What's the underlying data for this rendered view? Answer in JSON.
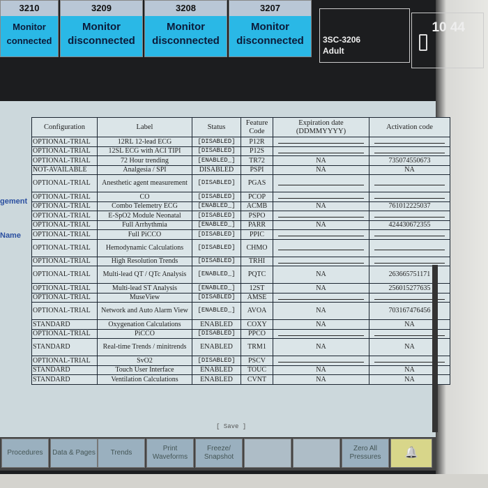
{
  "tiles": [
    {
      "num": "3210",
      "line1": "Monitor",
      "line2": "connected"
    },
    {
      "num": "3209",
      "line1": "Monitor",
      "line2": "disconnected"
    },
    {
      "num": "3208",
      "line1": "Monitor",
      "line2": "disconnected"
    },
    {
      "num": "3207",
      "line1": "Monitor",
      "line2": "disconnected"
    }
  ],
  "bed": {
    "name": "3SC-3206",
    "category": "Adult"
  },
  "clock": "10 44",
  "side_labels": [
    "gement",
    "Name"
  ],
  "table": {
    "headers": [
      "Configuration",
      "Label",
      "Status",
      "Feature Code",
      "Expiration date (DDMMYYYY)",
      "Activation code"
    ],
    "rows": [
      [
        "OPTIONAL-TRIAL",
        "12RL 12-lead ECG",
        "[DISABLED]",
        "P12R",
        "",
        ""
      ],
      [
        "OPTIONAL-TRIAL",
        "12SL ECG with ACI TIPI",
        "[DISABLED]",
        "P12S",
        "",
        ""
      ],
      [
        "OPTIONAL-TRIAL",
        "72 Hour trending",
        "[ENABLED_]",
        "TR72",
        "NA",
        "735074550673"
      ],
      [
        "NOT-AVAILABLE",
        "Analgesia / SPI",
        "DISABLED",
        "PSPI",
        "NA",
        "NA"
      ],
      [
        "OPTIONAL-TRIAL",
        "Anesthetic agent measurement",
        "[DISABLED]",
        "PGAS",
        "",
        ""
      ],
      [
        "OPTIONAL-TRIAL",
        "CO",
        "[DISABLED]",
        "PCOP",
        "",
        ""
      ],
      [
        "OPTIONAL-TRIAL",
        "Combo Telemetry ECG",
        "[ENABLED_]",
        "ACMB",
        "NA",
        "761012225037"
      ],
      [
        "OPTIONAL-TRIAL",
        "E-SpO2 Module Neonatal",
        "[DISABLED]",
        "PSPO",
        "",
        ""
      ],
      [
        "OPTIONAL-TRIAL",
        "Full Arrhythmia",
        "[ENABLED_]",
        "PARR",
        "NA",
        "424430672355"
      ],
      [
        "OPTIONAL-TRIAL",
        "Full PiCCO",
        "[DISABLED]",
        "PPIC",
        "",
        ""
      ],
      [
        "OPTIONAL-TRIAL",
        "Hemodynamic Calculations",
        "[DISABLED]",
        "CHMO",
        "",
        ""
      ],
      [
        "OPTIONAL-TRIAL",
        "High Resolution Trends",
        "[DISABLED]",
        "TRHI",
        "",
        ""
      ],
      [
        "OPTIONAL-TRIAL",
        "Multi-lead QT / QTc Analysis",
        "[ENABLED_]",
        "PQTC",
        "NA",
        "263665751171"
      ],
      [
        "OPTIONAL-TRIAL",
        "Multi-lead ST Analysis",
        "[ENABLED_]",
        "12ST",
        "NA",
        "256015277635"
      ],
      [
        "OPTIONAL-TRIAL",
        "MuseView",
        "[DISABLED]",
        "AMSE",
        "",
        ""
      ],
      [
        "OPTIONAL-TRIAL",
        "Network and Auto Alarm View",
        "[ENABLED_]",
        "AVOA",
        "NA",
        "703167476456"
      ],
      [
        "STANDARD",
        "Oxygenation Calculations",
        "ENABLED",
        "COXY",
        "NA",
        "NA"
      ],
      [
        "OPTIONAL-TRIAL",
        "PiCCO",
        "[DISABLED]",
        "PPCO",
        "",
        ""
      ],
      [
        "STANDARD",
        "Real-time Trends / minitrends",
        "ENABLED",
        "TRM1",
        "NA",
        "NA"
      ],
      [
        "OPTIONAL-TRIAL",
        "SvO2",
        "[DISABLED]",
        "PSCV",
        "",
        ""
      ],
      [
        "STANDARD",
        "Touch User Interface",
        "ENABLED",
        "TOUC",
        "NA",
        "NA"
      ],
      [
        "STANDARD",
        "Ventilation Calculations",
        "ENABLED",
        "CVNT",
        "NA",
        "NA"
      ]
    ]
  },
  "save_label": "[ Save ]",
  "buttons": [
    {
      "label": "Procedures",
      "enabled": true
    },
    {
      "label": "Data & Pages",
      "enabled": true
    },
    {
      "label": "Trends",
      "enabled": true
    },
    {
      "label": "Print Waveforms",
      "enabled": true
    },
    {
      "label": "Freeze/ Snapshot",
      "enabled": true
    },
    {
      "label": "",
      "enabled": false
    },
    {
      "label": "",
      "enabled": false
    },
    {
      "label": "Zero All Pressures",
      "enabled": true
    }
  ],
  "alarm_icon": "bell-icon"
}
